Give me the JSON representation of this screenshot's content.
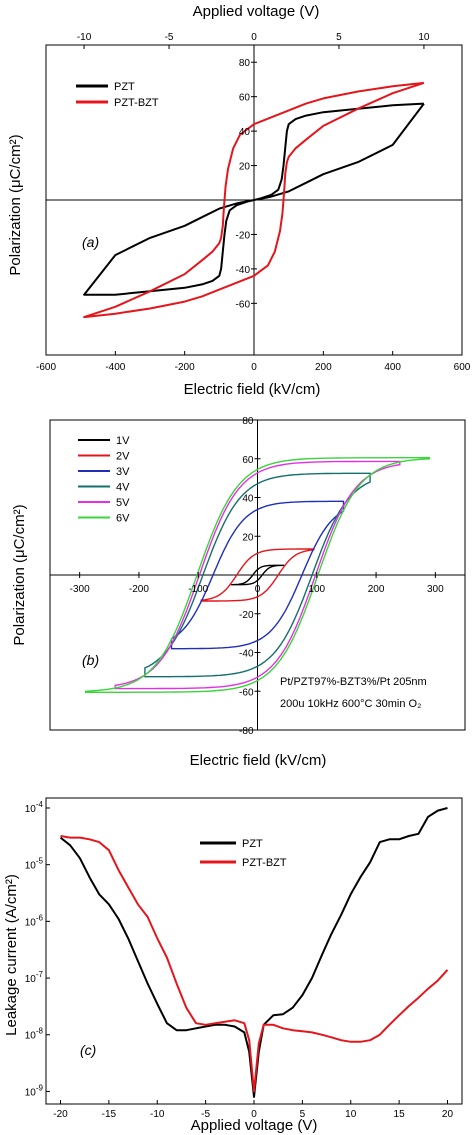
{
  "chart_data": [
    {
      "id": "a",
      "type": "line",
      "panel_label": "(a)",
      "xlabel": "Electric field (kV/cm)",
      "x2label": "Applied voltage (V)",
      "ylabel": "Polarization (μC/cm²)",
      "xlim": [
        -600,
        600
      ],
      "x2lim": [
        -12.24,
        12.24
      ],
      "ylim": [
        -90,
        90
      ],
      "xticks": [
        -600,
        -400,
        -200,
        0,
        200,
        400,
        600
      ],
      "x2ticks": [
        -10,
        -5,
        0,
        5,
        10
      ],
      "yticks": [
        -60,
        -40,
        -20,
        20,
        40,
        60,
        80
      ],
      "legend_position": "top-left",
      "series": [
        {
          "name": "PZT",
          "color": "#000000",
          "x": [
            490,
            400,
            300,
            200,
            150,
            120,
            100,
            95,
            90,
            85,
            80,
            70,
            50,
            20,
            0,
            -50,
            -100,
            -150,
            -200,
            -300,
            -400,
            -490,
            -400,
            -300,
            -200,
            -150,
            -120,
            -100,
            -95,
            -90,
            -85,
            -80,
            -70,
            -50,
            -20,
            0,
            50,
            100,
            150,
            200,
            300,
            400,
            490
          ],
          "y": [
            56,
            55,
            53,
            51,
            49,
            47,
            44,
            40,
            30,
            20,
            12,
            6,
            3,
            1,
            0,
            -2,
            -5,
            -10,
            -15,
            -22,
            -32,
            -55,
            -55,
            -53,
            -51,
            -49,
            -47,
            -44,
            -40,
            -30,
            -20,
            -12,
            -6,
            -3,
            -1,
            0,
            2,
            5,
            10,
            15,
            22,
            32,
            56
          ]
        },
        {
          "name": "PZT-BZT",
          "color": "#e4161c",
          "x": [
            490,
            400,
            300,
            200,
            150,
            100,
            50,
            0,
            -40,
            -60,
            -75,
            -82,
            -85,
            -88,
            -90,
            -95,
            -100,
            -120,
            -150,
            -200,
            -300,
            -400,
            -490,
            -400,
            -300,
            -200,
            -150,
            -100,
            -50,
            0,
            40,
            60,
            75,
            82,
            85,
            88,
            90,
            95,
            100,
            120,
            150,
            200,
            300,
            400,
            490
          ],
          "y": [
            68,
            66,
            63,
            59,
            56,
            52,
            48,
            44,
            38,
            30,
            18,
            8,
            0,
            -8,
            -15,
            -22,
            -25,
            -30,
            -35,
            -43,
            -53,
            -62,
            -68,
            -66,
            -63,
            -59,
            -56,
            -52,
            -48,
            -44,
            -38,
            -30,
            -18,
            -8,
            0,
            8,
            15,
            22,
            25,
            30,
            35,
            43,
            53,
            62,
            68
          ]
        }
      ]
    },
    {
      "id": "b",
      "type": "line",
      "panel_label": "(b)",
      "xlabel": "Electric field (kV/cm)",
      "ylabel": "Polarization (μC/cm²)",
      "xlim": [
        -350,
        350
      ],
      "ylim": [
        -80,
        80
      ],
      "xticks": [
        -300,
        -200,
        -100,
        0,
        100,
        200,
        300
      ],
      "yticks": [
        -80,
        -60,
        -40,
        -20,
        20,
        40,
        60,
        80
      ],
      "legend_position": "top-left",
      "annotation": [
        "Pt/PZT97%-BZT3%/Pt  205nm",
        "200u  10kHz  600°C  30min  O₂"
      ],
      "series": [
        {
          "name": "1V",
          "color": "#000000",
          "emax": 45,
          "pmax": 5,
          "ec": 8,
          "pr": 1
        },
        {
          "name": "2V",
          "color": "#e4161c",
          "emax": 95,
          "pmax": 13,
          "ec": 35,
          "pr": 5
        },
        {
          "name": "3V",
          "color": "#1f2fb8",
          "emax": 145,
          "pmax": 33,
          "ec": 75,
          "pr": 14
        },
        {
          "name": "4V",
          "color": "#14706e",
          "emax": 190,
          "pmax": 48,
          "ec": 92,
          "pr": 24
        },
        {
          "name": "5V",
          "color": "#e62ee6",
          "emax": 240,
          "pmax": 57,
          "ec": 98,
          "pr": 30
        },
        {
          "name": "6V",
          "color": "#3ad63a",
          "emax": 290,
          "pmax": 60,
          "ec": 102,
          "pr": 32
        }
      ]
    },
    {
      "id": "c",
      "type": "line",
      "panel_label": "(c)",
      "xlabel": "Applied voltage (V)",
      "ylabel": "Leakage current (A/cm²)",
      "yscale": "log",
      "xlim": [
        -21.5,
        21.5
      ],
      "ylim": [
        6e-10,
        0.00015
      ],
      "xticks": [
        -20,
        -15,
        -10,
        -5,
        0,
        5,
        10,
        15,
        20
      ],
      "yticks_exp": [
        -9,
        -8,
        -7,
        -6,
        -5,
        -4
      ],
      "legend_position": "top-right",
      "series": [
        {
          "name": "PZT",
          "color": "#000000",
          "x": [
            -20,
            -19,
            -18,
            -17,
            -16,
            -15,
            -14,
            -13,
            -12,
            -11,
            -10,
            -9,
            -8,
            -7,
            -6,
            -5,
            -4,
            -3,
            -2,
            -1,
            -0.5,
            0,
            0.5,
            1,
            2,
            3,
            4,
            5,
            6,
            7,
            8,
            9,
            10,
            11,
            12,
            13,
            14,
            15,
            16,
            17,
            18,
            19,
            20
          ],
          "y": [
            3e-05,
            2.2e-05,
            1.3e-05,
            6e-06,
            3e-06,
            2e-06,
            1.1e-06,
            5e-07,
            2e-07,
            8e-08,
            3.5e-08,
            1.6e-08,
            1.2e-08,
            1.2e-08,
            1.3e-08,
            1.4e-08,
            1.5e-08,
            1.5e-08,
            1.4e-08,
            1.1e-08,
            5e-09,
            8e-10,
            5e-09,
            1.5e-08,
            2.2e-08,
            2.3e-08,
            3e-08,
            5e-08,
            1e-07,
            2.5e-07,
            6e-07,
            1.3e-06,
            3e-06,
            6e-06,
            1.1e-05,
            2.5e-05,
            2.8e-05,
            2.8e-05,
            3.2e-05,
            3.5e-05,
            7e-05,
            9e-05,
            0.0001
          ]
        },
        {
          "name": "PZT-BZT",
          "color": "#e4161c",
          "x": [
            -20,
            -19,
            -18,
            -17,
            -16,
            -15,
            -14,
            -13,
            -12,
            -11,
            -10,
            -9,
            -8,
            -7,
            -6,
            -5,
            -4,
            -3,
            -2,
            -1,
            -0.5,
            0,
            0.5,
            1,
            2,
            3,
            4,
            5,
            6,
            7,
            8,
            9,
            10,
            11,
            12,
            13,
            14,
            15,
            16,
            17,
            18,
            19,
            20
          ],
          "y": [
            3.2e-05,
            3e-05,
            3e-05,
            2.8e-05,
            2.5e-05,
            1.8e-05,
            8e-06,
            4e-06,
            2e-06,
            1.2e-06,
            5e-07,
            2.3e-07,
            8e-08,
            3e-08,
            1.6e-08,
            1.5e-08,
            1.6e-08,
            1.7e-08,
            1.8e-08,
            1.6e-08,
            8e-09,
            1e-09,
            7e-09,
            1.5e-08,
            1.5e-08,
            1.3e-08,
            1.2e-08,
            1.15e-08,
            1.1e-08,
            1e-08,
            9e-09,
            8e-09,
            7.5e-09,
            7.5e-09,
            8e-09,
            1e-08,
            1.5e-08,
            2.2e-08,
            3.2e-08,
            4.5e-08,
            6.5e-08,
            9e-08,
            1.4e-07
          ]
        }
      ]
    }
  ]
}
